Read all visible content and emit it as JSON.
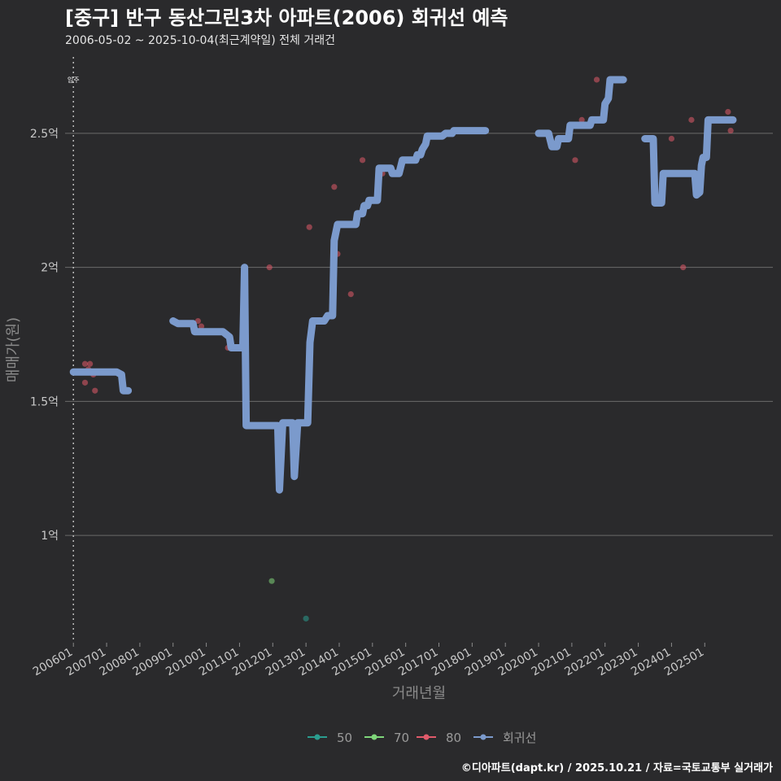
{
  "chart_data": {
    "type": "scatter",
    "title": "[중구] 반구 동산그린3차 아파트(2006) 회귀선 예측",
    "subtitle": "2006-05-02 ~ 2025-10-04(최근계약일) 전체 거래건",
    "xlabel": "거래년월",
    "ylabel": "매매가(원)",
    "ylim": [
      0.6,
      2.8
    ],
    "xlim": [
      2005.75,
      2027.05
    ],
    "y_ticks": [
      {
        "value": 1.0,
        "label": "1억"
      },
      {
        "value": 1.5,
        "label": "1.5억"
      },
      {
        "value": 2.0,
        "label": "2억"
      },
      {
        "value": 2.5,
        "label": "2.5억"
      }
    ],
    "x_ticks": [
      {
        "value": 2006.0,
        "label": "200601"
      },
      {
        "value": 2007.0,
        "label": "200701"
      },
      {
        "value": 2008.0,
        "label": "200801"
      },
      {
        "value": 2009.0,
        "label": "200901"
      },
      {
        "value": 2010.0,
        "label": "201001"
      },
      {
        "value": 2011.0,
        "label": "201101"
      },
      {
        "value": 2012.0,
        "label": "201201"
      },
      {
        "value": 2013.0,
        "label": "201301"
      },
      {
        "value": 2014.0,
        "label": "201401"
      },
      {
        "value": 2015.0,
        "label": "201501"
      },
      {
        "value": 2016.0,
        "label": "201601"
      },
      {
        "value": 2017.0,
        "label": "201701"
      },
      {
        "value": 2018.0,
        "label": "201801"
      },
      {
        "value": 2019.0,
        "label": "201901"
      },
      {
        "value": 2020.0,
        "label": "202001"
      },
      {
        "value": 2021.0,
        "label": "202101"
      },
      {
        "value": 2022.0,
        "label": "202201"
      },
      {
        "value": 2023.0,
        "label": "202301"
      },
      {
        "value": 2024.0,
        "label": "202401"
      },
      {
        "value": 2025.0,
        "label": "202501"
      }
    ],
    "annotation": {
      "x": 2006.0,
      "label": "입주"
    },
    "legend": [
      {
        "name": "50",
        "color": "#2a9d8f"
      },
      {
        "name": "70",
        "color": "#7fd67a"
      },
      {
        "name": "80",
        "color": "#e05a6a"
      },
      {
        "name": "회귀선",
        "color": "#7b9acc"
      }
    ],
    "series": [
      {
        "name": "50",
        "color": "#2a9d8f",
        "points": [
          [
            2013.0,
            0.69
          ]
        ]
      },
      {
        "name": "70",
        "color": "#7fd67a",
        "points": [
          [
            2011.97,
            0.83
          ]
        ]
      },
      {
        "name": "80",
        "color": "#e05a6a",
        "points": [
          [
            2006.35,
            1.64
          ],
          [
            2006.45,
            1.62
          ],
          [
            2006.5,
            1.64
          ],
          [
            2006.35,
            1.57
          ],
          [
            2006.65,
            1.54
          ],
          [
            2006.6,
            1.6
          ],
          [
            2009.75,
            1.8
          ],
          [
            2009.85,
            1.78
          ],
          [
            2010.65,
            1.7
          ],
          [
            2011.9,
            2.0
          ],
          [
            2013.1,
            2.15
          ],
          [
            2013.85,
            2.3
          ],
          [
            2013.95,
            2.05
          ],
          [
            2014.35,
            1.9
          ],
          [
            2014.7,
            2.4
          ],
          [
            2015.3,
            2.35
          ],
          [
            2016.0,
            2.4
          ],
          [
            2020.9,
            2.5
          ],
          [
            2021.1,
            2.4
          ],
          [
            2021.3,
            2.55
          ],
          [
            2021.75,
            2.7
          ],
          [
            2024.0,
            2.48
          ],
          [
            2024.35,
            2.0
          ],
          [
            2024.6,
            2.55
          ],
          [
            2025.7,
            2.58
          ],
          [
            2025.78,
            2.51
          ]
        ]
      }
    ],
    "regression": {
      "name": "회귀선",
      "color": "#7b9acc",
      "segments": [
        [
          [
            2006.0,
            1.61
          ],
          [
            2007.3,
            1.61
          ],
          [
            2007.45,
            1.6
          ],
          [
            2007.5,
            1.54
          ],
          [
            2007.65,
            1.54
          ]
        ],
        [
          [
            2009.0,
            1.8
          ],
          [
            2009.15,
            1.79
          ],
          [
            2009.6,
            1.79
          ],
          [
            2009.65,
            1.76
          ],
          [
            2010.5,
            1.76
          ],
          [
            2010.7,
            1.74
          ],
          [
            2010.75,
            1.7
          ],
          [
            2011.1,
            1.7
          ],
          [
            2011.15,
            2.0
          ],
          [
            2011.2,
            1.41
          ],
          [
            2012.0,
            1.41
          ],
          [
            2012.15,
            1.41
          ],
          [
            2012.2,
            1.17
          ],
          [
            2012.3,
            1.42
          ],
          [
            2012.6,
            1.42
          ],
          [
            2012.65,
            1.22
          ],
          [
            2012.75,
            1.42
          ],
          [
            2013.0,
            1.42
          ],
          [
            2013.05,
            1.42
          ],
          [
            2013.12,
            1.72
          ],
          [
            2013.2,
            1.8
          ],
          [
            2013.55,
            1.8
          ],
          [
            2013.65,
            1.82
          ],
          [
            2013.8,
            1.82
          ],
          [
            2013.85,
            2.1
          ],
          [
            2013.95,
            2.16
          ],
          [
            2014.5,
            2.16
          ],
          [
            2014.55,
            2.2
          ],
          [
            2014.7,
            2.2
          ],
          [
            2014.75,
            2.23
          ],
          [
            2014.85,
            2.23
          ],
          [
            2014.9,
            2.25
          ],
          [
            2015.15,
            2.25
          ],
          [
            2015.2,
            2.37
          ],
          [
            2015.55,
            2.37
          ],
          [
            2015.6,
            2.35
          ],
          [
            2015.8,
            2.35
          ],
          [
            2015.9,
            2.4
          ],
          [
            2016.3,
            2.4
          ],
          [
            2016.35,
            2.42
          ],
          [
            2016.45,
            2.42
          ],
          [
            2016.5,
            2.44
          ],
          [
            2016.6,
            2.46
          ],
          [
            2016.65,
            2.49
          ],
          [
            2017.1,
            2.49
          ],
          [
            2017.2,
            2.5
          ],
          [
            2017.4,
            2.5
          ],
          [
            2017.45,
            2.51
          ],
          [
            2018.4,
            2.51
          ]
        ],
        [
          [
            2020.0,
            2.5
          ],
          [
            2020.3,
            2.5
          ],
          [
            2020.4,
            2.45
          ],
          [
            2020.55,
            2.45
          ],
          [
            2020.6,
            2.48
          ],
          [
            2020.9,
            2.48
          ],
          [
            2020.95,
            2.53
          ],
          [
            2021.55,
            2.53
          ],
          [
            2021.6,
            2.55
          ],
          [
            2021.95,
            2.55
          ],
          [
            2022.0,
            2.61
          ],
          [
            2022.1,
            2.63
          ],
          [
            2022.15,
            2.7
          ],
          [
            2022.55,
            2.7
          ]
        ],
        [
          [
            2023.2,
            2.48
          ],
          [
            2023.45,
            2.48
          ],
          [
            2023.5,
            2.24
          ],
          [
            2023.7,
            2.24
          ],
          [
            2023.75,
            2.35
          ],
          [
            2024.7,
            2.35
          ],
          [
            2024.75,
            2.27
          ],
          [
            2024.85,
            2.28
          ],
          [
            2024.9,
            2.38
          ],
          [
            2024.95,
            2.41
          ],
          [
            2025.05,
            2.41
          ],
          [
            2025.1,
            2.55
          ],
          [
            2025.85,
            2.55
          ]
        ]
      ]
    }
  },
  "caption": "©디아파트(dapt.kr) / 2025.10.21 / 자료=국토교통부 실거래가"
}
